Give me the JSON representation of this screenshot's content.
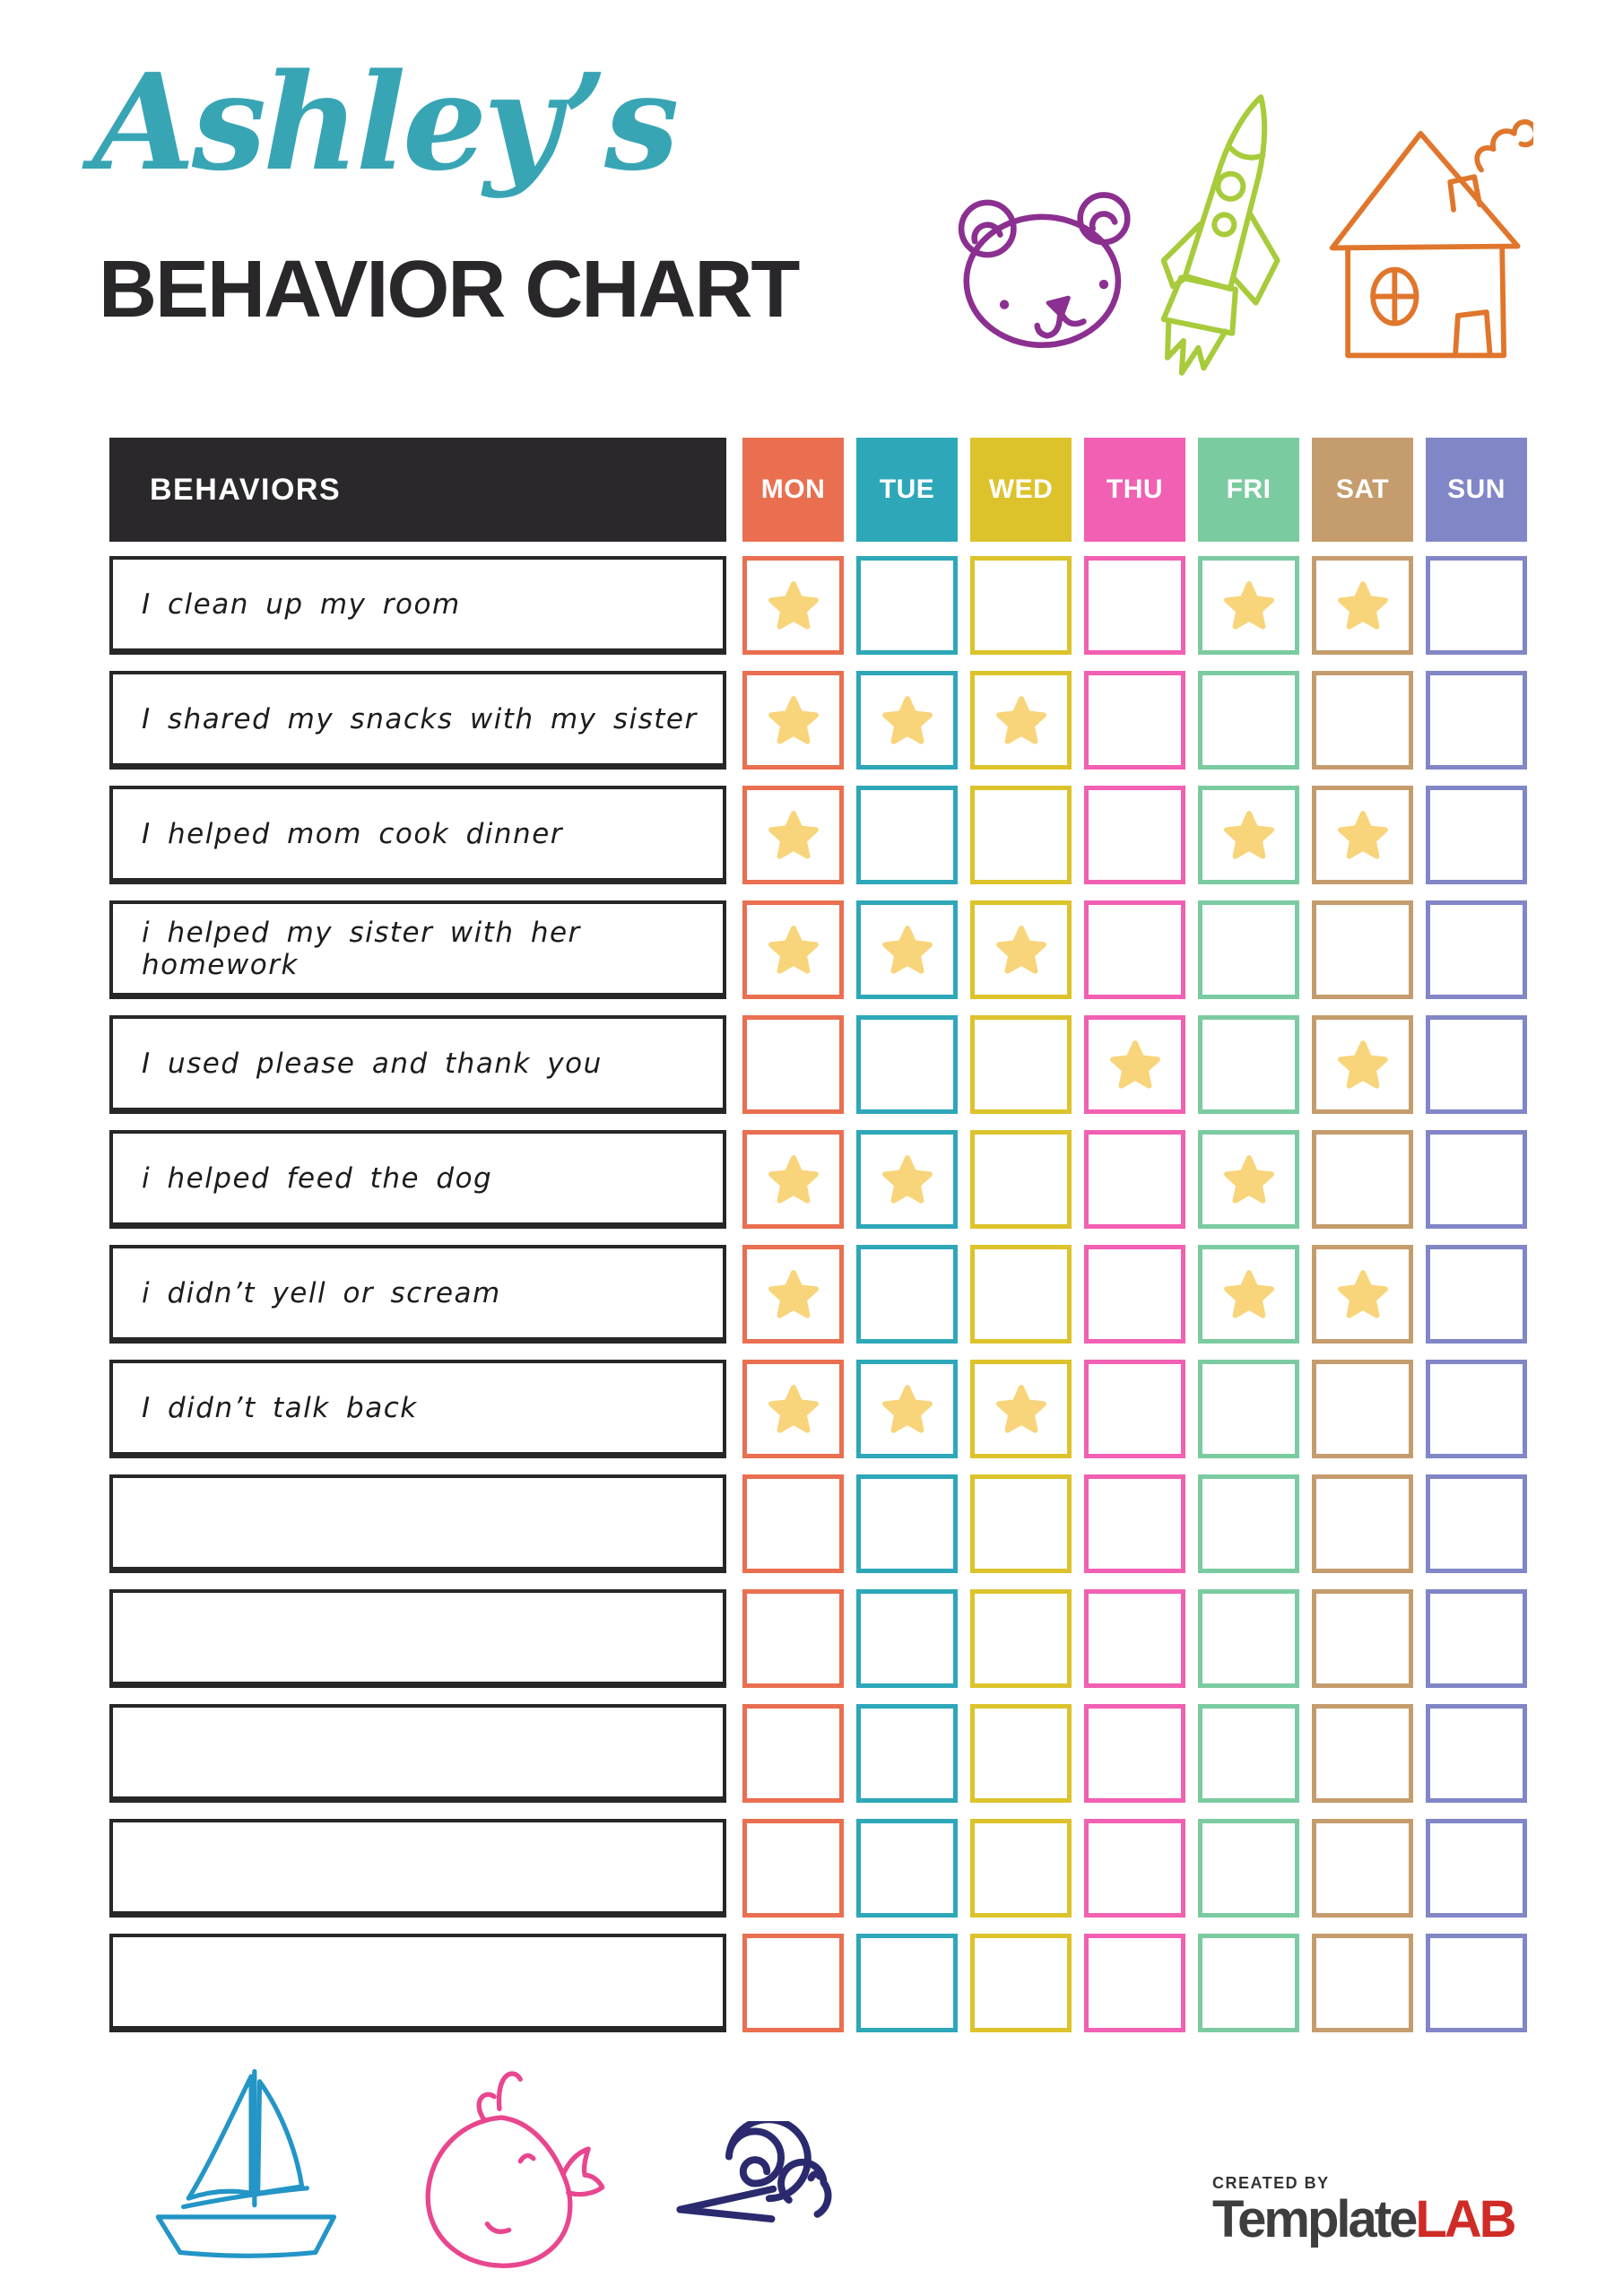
{
  "header": {
    "name_script": "Ashley’s",
    "name_color": "#38A5B5",
    "title": "BEHAVIOR CHART"
  },
  "table": {
    "behaviors_header": "BEHAVIORS",
    "header_bg": "#2A282B",
    "star_color": "#F8D47A",
    "days": [
      {
        "label": "MON",
        "color": "#E96F50"
      },
      {
        "label": "TUE",
        "color": "#2EA7B9"
      },
      {
        "label": "WED",
        "color": "#DCC32B"
      },
      {
        "label": "THU",
        "color": "#F160B2"
      },
      {
        "label": "FRI",
        "color": "#7BCBA1"
      },
      {
        "label": "SAT",
        "color": "#C59C6D"
      },
      {
        "label": "SUN",
        "color": "#8186C7"
      }
    ],
    "rows": [
      {
        "behavior": "I clean up my room",
        "stars": [
          1,
          0,
          0,
          0,
          1,
          1,
          0
        ]
      },
      {
        "behavior": "I shared my snacks with my sister",
        "stars": [
          1,
          1,
          1,
          0,
          0,
          0,
          0
        ]
      },
      {
        "behavior": "I helped mom cook dinner",
        "stars": [
          1,
          0,
          0,
          0,
          1,
          1,
          0
        ]
      },
      {
        "behavior": "i helped my sister with her homework",
        "stars": [
          1,
          1,
          1,
          0,
          0,
          0,
          0
        ]
      },
      {
        "behavior": "I used please and thank you",
        "stars": [
          0,
          0,
          0,
          1,
          0,
          1,
          0
        ]
      },
      {
        "behavior": "i helped feed the dog",
        "stars": [
          1,
          1,
          0,
          0,
          1,
          0,
          0
        ]
      },
      {
        "behavior": "i didn’t yell or scream",
        "stars": [
          1,
          0,
          0,
          0,
          1,
          1,
          0
        ]
      },
      {
        "behavior": "I didn’t talk back",
        "stars": [
          1,
          1,
          1,
          0,
          0,
          0,
          0
        ]
      },
      {
        "behavior": "",
        "stars": [
          0,
          0,
          0,
          0,
          0,
          0,
          0
        ]
      },
      {
        "behavior": "",
        "stars": [
          0,
          0,
          0,
          0,
          0,
          0,
          0
        ]
      },
      {
        "behavior": "",
        "stars": [
          0,
          0,
          0,
          0,
          0,
          0,
          0
        ]
      },
      {
        "behavior": "",
        "stars": [
          0,
          0,
          0,
          0,
          0,
          0,
          0
        ]
      },
      {
        "behavior": "",
        "stars": [
          0,
          0,
          0,
          0,
          0,
          0,
          0
        ]
      }
    ]
  },
  "doodles": {
    "bear_color": "#8B3090",
    "rocket_color": "#A7CB3B",
    "house_color": "#E0762C",
    "sailboat_color": "#2395C6",
    "whale_color": "#E8468E",
    "snail_color": "#2B2A6E"
  },
  "footer": {
    "created_by": "CREATED BY",
    "brand_dark": "Template",
    "brand_red": "LAB"
  }
}
